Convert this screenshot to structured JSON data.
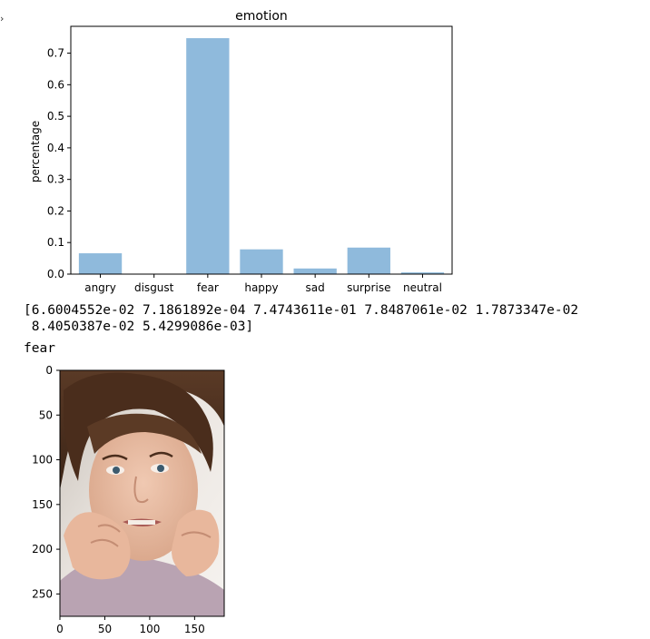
{
  "notebook": {
    "prompt_marker": "›",
    "output_array_line1": "[6.6004552e-02 7.1861892e-04 7.4743611e-01 7.8487061e-02 1.7873347e-02",
    "output_array_line2": " 8.4050387e-02 5.4299086e-03]",
    "predicted_label": "fear"
  },
  "chart_data": [
    {
      "type": "bar",
      "title": "emotion",
      "xlabel": "",
      "ylabel": "percentage",
      "categories": [
        "angry",
        "disgust",
        "fear",
        "happy",
        "sad",
        "surprise",
        "neutral"
      ],
      "values": [
        0.066004552,
        0.00071861892,
        0.74743611,
        0.078487061,
        0.017873347,
        0.084050387,
        0.0054299086
      ],
      "ylim": [
        0,
        0.785
      ],
      "yticks": [
        "0.0",
        "0.1",
        "0.2",
        "0.3",
        "0.4",
        "0.5",
        "0.6",
        "0.7"
      ],
      "bar_color": "#8fbadc",
      "grid": false,
      "legend": "none"
    },
    {
      "type": "image",
      "title": "",
      "subject": "photo of a frightened woman biting her fingernails",
      "xlim": [
        0,
        183
      ],
      "ylim": [
        275,
        0
      ],
      "xticks": [
        "0",
        "50",
        "100",
        "150"
      ],
      "yticks": [
        "0",
        "50",
        "100",
        "150",
        "200",
        "250"
      ],
      "grid": false
    }
  ]
}
